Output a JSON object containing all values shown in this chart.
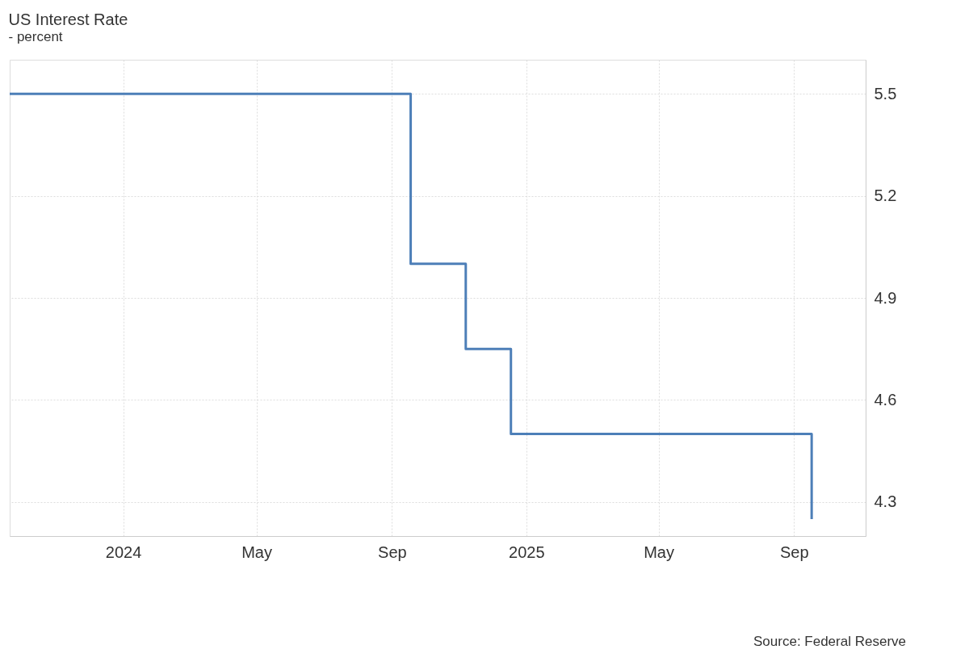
{
  "chart_data": {
    "type": "step",
    "title": "US Interest Rate",
    "subtitle": "- percent",
    "x": [
      "2023-09-20",
      "2024-09-18",
      "2024-11-07",
      "2024-12-18",
      "2025-09-17"
    ],
    "series": [
      {
        "color": "#4d7fb8",
        "values": [
          5.5,
          5.0,
          4.75,
          4.5,
          4.25
        ]
      }
    ],
    "xlim": [
      "2023-09-20",
      "2025-11-05"
    ],
    "xticks": [
      {
        "value": "2024-01-01",
        "label": "2024"
      },
      {
        "value": "2024-05-01",
        "label": "May"
      },
      {
        "value": "2024-09-01",
        "label": "Sep"
      },
      {
        "value": "2025-01-01",
        "label": "2025"
      },
      {
        "value": "2025-05-01",
        "label": "May"
      },
      {
        "value": "2025-09-01",
        "label": "Sep"
      }
    ],
    "ylim": [
      4.2,
      5.6
    ],
    "yticks": [
      4.3,
      4.6,
      4.9,
      5.2,
      5.5
    ],
    "grid": true,
    "line_style": "solid",
    "marker": "none",
    "annotations": [
      "Source: Federal Reserve"
    ]
  }
}
